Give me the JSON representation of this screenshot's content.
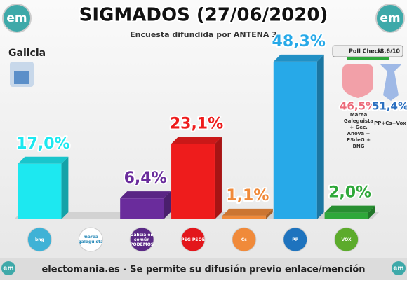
{
  "chart_data": {
    "type": "bar3d",
    "title": "SIGMADOS (27/06/2020)",
    "subtitle": "Encuesta difundida por ANTENA 3",
    "region": "Galicia",
    "brand": "em",
    "poll_check": {
      "label": "Poll Check",
      "score": "8,6/10"
    },
    "categories": [
      "bng",
      "marea galeguista",
      "Galicia en común PODEMOS",
      "PSG PSOE",
      "Cs",
      "PP",
      "VOX"
    ],
    "values": [
      17.0,
      null,
      6.4,
      23.1,
      1.1,
      48.3,
      2.0
    ],
    "value_labels": [
      "17,0%",
      null,
      "6,4%",
      "23,1%",
      "1,1%",
      "48,3%",
      "2,0%"
    ],
    "colors": [
      "#1de8f0",
      "#8a8a8a",
      "#6a2c9c",
      "#ee1c1c",
      "#f08a3a",
      "#27a9e8",
      "#2fa83a"
    ],
    "logo_colors": [
      "#3fb2d6",
      "#ffffff",
      "#5b2a86",
      "#e3161b",
      "#f08a3a",
      "#1e73be",
      "#5cab2c"
    ],
    "ylim": [
      0,
      50
    ],
    "blocs": [
      {
        "value": 46.5,
        "label": "46,5%",
        "caption": "Marea Galeguista + Gec. Anova + PSdeG + BNG",
        "color": "#ec6a7a"
      },
      {
        "value": 51.4,
        "label": "51,4%",
        "caption": "PP+Cs+Vox",
        "color": "#2a6fc0"
      }
    ],
    "footer": "electomania.es - Se permite su difusión previo enlace/mención"
  }
}
